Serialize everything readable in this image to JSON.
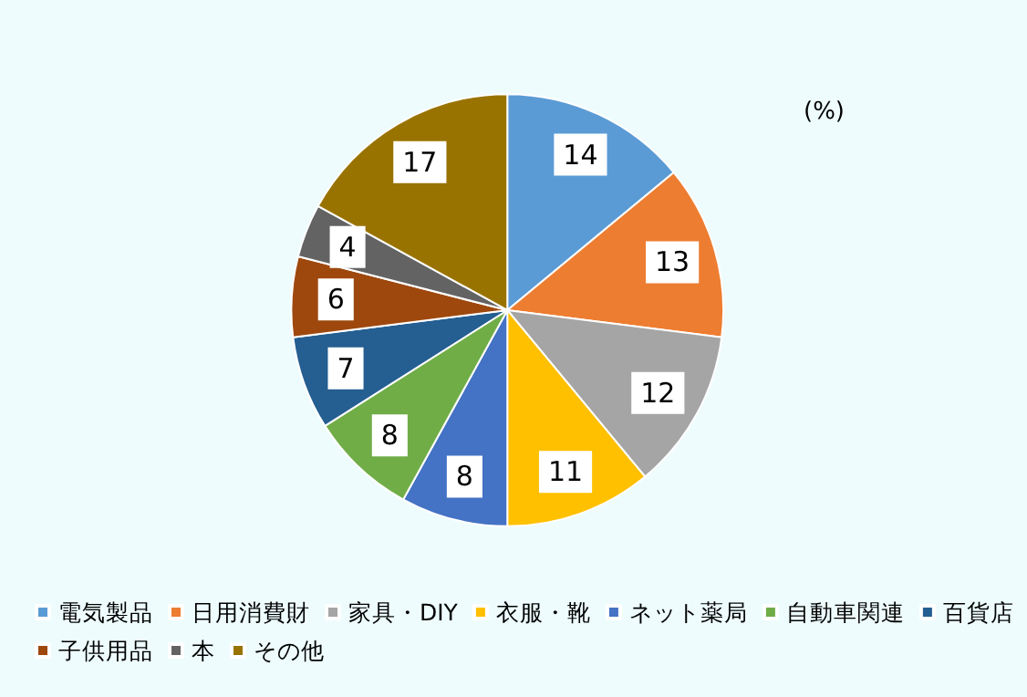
{
  "chart_data": {
    "type": "pie",
    "categories": [
      "電気製品",
      "日用消費財",
      "家具・DIY",
      "衣服・靴",
      "ネット薬局",
      "自動車関連",
      "百貨店",
      "子供用品",
      "本",
      "その他"
    ],
    "values": [
      14,
      13,
      12,
      11,
      8,
      8,
      7,
      6,
      4,
      17
    ],
    "colors": [
      "#5b9bd5",
      "#ed7d31",
      "#a5a5a5",
      "#ffc000",
      "#4472c4",
      "#70ad47",
      "#255e91",
      "#9e480e",
      "#636363",
      "#997300"
    ],
    "data_labels": true,
    "legend": "bottom",
    "annotations": [
      "(%)"
    ]
  }
}
